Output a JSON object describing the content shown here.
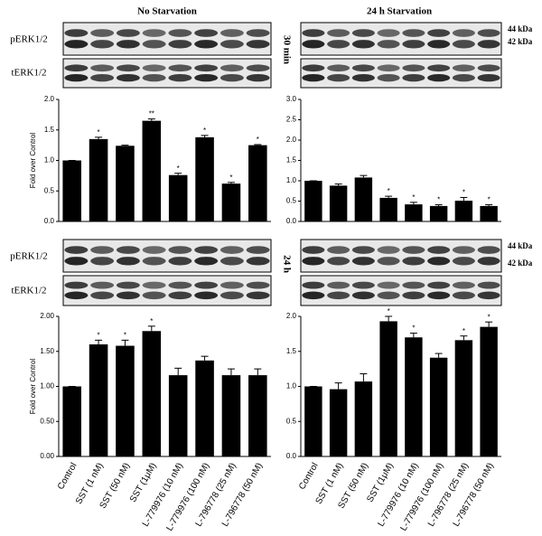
{
  "headers": [
    "No Starvation",
    "24 h Starvation"
  ],
  "blot_labels": [
    "pERK1/2",
    "tERK1/2"
  ],
  "time_labels": [
    "30 min",
    "24 h"
  ],
  "kda_labels": [
    "44 kDa",
    "42 kDa"
  ],
  "chart_data": [
    {
      "type": "bar",
      "y_label": "Fold over Control",
      "color": "#000000",
      "values": [
        1.0,
        1.35,
        1.24,
        1.65,
        0.76,
        1.38,
        0.62,
        1.25
      ],
      "errors": [
        0,
        0.03,
        0.01,
        0.03,
        0.03,
        0.03,
        0.02,
        0.01
      ],
      "annotations": [
        null,
        "*",
        null,
        "**",
        "*",
        "*",
        "*",
        "*"
      ],
      "ylim": [
        0,
        2
      ],
      "yticks": [
        {
          "value": 0,
          "label": "0.0"
        },
        0.5,
        {
          "value": 1,
          "label": "1.0"
        },
        1.5,
        {
          "value": 2,
          "label": "2.0"
        }
      ]
    },
    {
      "type": "bar",
      "color": "#000000",
      "values": [
        1.0,
        0.88,
        1.08,
        0.58,
        0.42,
        0.38,
        0.51,
        0.38
      ],
      "errors": [
        0,
        0.04,
        0.05,
        0.04,
        0.05,
        0.03,
        0.08,
        0.03
      ],
      "annotations": [
        null,
        null,
        null,
        "*",
        "*",
        "*",
        "*",
        "*"
      ],
      "ylim": [
        0,
        3
      ],
      "yticks": [
        {
          "value": 0,
          "label": "0.0"
        },
        0.5,
        {
          "value": 1,
          "label": "1.0"
        },
        1.5,
        {
          "value": 2,
          "label": "2.0"
        },
        2.5,
        {
          "value": 3,
          "label": "3.0"
        }
      ]
    },
    {
      "type": "bar",
      "y_label": "Fold over Control",
      "color": "#000000",
      "categories": [
        "Control",
        "SST (1 nM)",
        "SST (50 nM)",
        "SST (1μM)",
        "L-779976 (10 nM)",
        "L-779976 (100 nM)",
        "L-796778 (25 nM)",
        "L-796778 (50 nM)"
      ],
      "values": [
        1.0,
        1.6,
        1.58,
        1.79,
        1.16,
        1.37,
        1.16,
        1.16
      ],
      "errors": [
        0,
        0.06,
        0.08,
        0.07,
        0.1,
        0.06,
        0.09,
        0.09
      ],
      "annotations": [
        null,
        "*",
        "*",
        "*",
        null,
        null,
        null,
        null
      ],
      "ylim": [
        0,
        2
      ],
      "yticks": [
        {
          "value": 0,
          "label": "0.00"
        },
        {
          "value": 0.5,
          "label": "0.50"
        },
        {
          "value": 1,
          "label": "1.00"
        },
        {
          "value": 1.5,
          "label": "1.50"
        },
        {
          "value": 2,
          "label": "2.00"
        }
      ]
    },
    {
      "type": "bar",
      "color": "#000000",
      "categories": [
        "Control",
        "SST (1 nM)",
        "SST (50 nM)",
        "SST (1μM)",
        "L-779976 (10 nM)",
        "L-779976 (100 nM)",
        "L-796778 (25 nM)",
        "L-796778 (50 nM)"
      ],
      "values": [
        1.0,
        0.96,
        1.07,
        1.93,
        1.7,
        1.41,
        1.66,
        1.85
      ],
      "errors": [
        0,
        0.09,
        0.11,
        0.07,
        0.06,
        0.06,
        0.06,
        0.07
      ],
      "annotations": [
        null,
        null,
        null,
        "*",
        "*",
        null,
        "*",
        "*"
      ],
      "ylim": [
        0,
        2
      ],
      "yticks": [
        {
          "value": 0,
          "label": "0.0"
        },
        0.5,
        {
          "value": 1,
          "label": "1.0"
        },
        1.5,
        {
          "value": 2,
          "label": "2.0"
        }
      ]
    }
  ]
}
